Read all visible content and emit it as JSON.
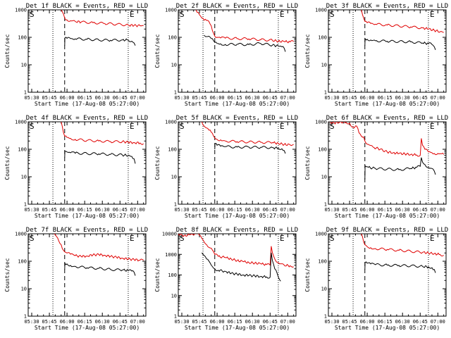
{
  "colors": {
    "events": "#000000",
    "lld": "#e00000",
    "axis": "#000000"
  },
  "x_tick_labels": [
    "05:30",
    "05:45",
    "06:00",
    "06:15",
    "06:30",
    "06:45",
    "07:00"
  ],
  "y_tick_labels": [
    "1",
    "10",
    "100",
    "1000"
  ],
  "y_tick_labels_big": [
    "1",
    "10",
    "100",
    "1000",
    "10000"
  ],
  "xlabel": "Start Time (17-Aug-08 05:27:00)",
  "ylabel": "Counts/sec",
  "start_marker": "S",
  "end_marker": "E",
  "chart_data": [
    {
      "type": "line",
      "title": "Det 1f BLACK = Events, RED = LLD",
      "x_unit": "minutes after 05:27:00",
      "xlim": [
        0,
        100
      ],
      "ylim": [
        1,
        1000
      ],
      "yscale": "log",
      "verticals": {
        "dotted": [
          21,
          85
        ],
        "dashed": [
          31
        ]
      },
      "series": [
        {
          "name": "RED = LLD",
          "color": "#e00000",
          "x": [
            28,
            30,
            31,
            33,
            36,
            40,
            45,
            55,
            65,
            75,
            85,
            90,
            95,
            98
          ],
          "y": [
            1000,
            700,
            500,
            430,
            400,
            380,
            360,
            340,
            320,
            300,
            280,
            270,
            265,
            265
          ]
        },
        {
          "name": "BLACK = Events",
          "color": "#000000",
          "x": [
            31,
            31.2,
            33,
            36,
            40,
            50,
            60,
            70,
            80,
            85,
            88,
            90,
            91
          ],
          "y": [
            50,
            95,
            92,
            90,
            88,
            85,
            80,
            78,
            80,
            80,
            72,
            62,
            50
          ]
        }
      ]
    },
    {
      "type": "line",
      "title": "Det 2f BLACK = Events, RED = LLD",
      "x_unit": "minutes after 05:27:00",
      "xlim": [
        0,
        100
      ],
      "ylim": [
        1,
        1000
      ],
      "yscale": "log",
      "verticals": {
        "dotted": [
          21,
          85
        ],
        "dashed": [
          31
        ]
      },
      "series": [
        {
          "name": "RED = LLD",
          "color": "#e00000",
          "x": [
            15,
            17,
            20,
            22,
            24,
            26,
            28,
            30,
            31,
            33,
            36,
            40,
            50,
            60,
            70,
            80,
            85,
            90,
            95,
            98
          ],
          "y": [
            1000,
            800,
            500,
            420,
            410,
            380,
            260,
            140,
            110,
            100,
            95,
            93,
            90,
            88,
            82,
            78,
            72,
            70,
            68,
            70
          ]
        },
        {
          "name": "BLACK = Events",
          "color": "#000000",
          "x": [
            22,
            26,
            28,
            30,
            31,
            33,
            36,
            40,
            50,
            60,
            70,
            80,
            85,
            88,
            90,
            91
          ],
          "y": [
            120,
            110,
            90,
            75,
            65,
            60,
            58,
            55,
            56,
            54,
            60,
            52,
            48,
            45,
            40,
            30
          ]
        }
      ]
    },
    {
      "type": "line",
      "title": "Det 3f BLACK = Events, RED = LLD",
      "x_unit": "minutes after 05:27:00",
      "xlim": [
        0,
        100
      ],
      "ylim": [
        1,
        1000
      ],
      "yscale": "log",
      "verticals": {
        "dotted": [
          21,
          85
        ],
        "dashed": [
          31
        ]
      },
      "series": [
        {
          "name": "RED = LLD",
          "color": "#e00000",
          "x": [
            28,
            30,
            31,
            33,
            36,
            40,
            50,
            60,
            70,
            80,
            85,
            90,
            95,
            98
          ],
          "y": [
            1000,
            500,
            380,
            340,
            320,
            300,
            280,
            260,
            240,
            220,
            200,
            180,
            160,
            150
          ]
        },
        {
          "name": "BLACK = Events",
          "color": "#000000",
          "x": [
            31,
            31.2,
            33,
            36,
            40,
            50,
            60,
            70,
            80,
            85,
            88,
            90,
            91
          ],
          "y": [
            50,
            90,
            85,
            80,
            75,
            72,
            70,
            68,
            62,
            60,
            55,
            45,
            35
          ]
        }
      ]
    },
    {
      "type": "line",
      "title": "Det 4f BLACK = Events, RED = LLD",
      "x_unit": "minutes after 05:27:00",
      "xlim": [
        0,
        100
      ],
      "ylim": [
        1,
        1000
      ],
      "yscale": "log",
      "verticals": {
        "dotted": [
          21,
          85
        ],
        "dashed": [
          31
        ]
      },
      "series": [
        {
          "name": "RED = LLD",
          "color": "#e00000",
          "x": [
            28,
            30,
            31,
            33,
            36,
            40,
            50,
            60,
            70,
            80,
            85,
            90,
            95,
            98
          ],
          "y": [
            1000,
            400,
            300,
            270,
            250,
            230,
            210,
            200,
            190,
            190,
            180,
            175,
            170,
            160
          ]
        },
        {
          "name": "BLACK = Events",
          "color": "#000000",
          "x": [
            31,
            31.2,
            33,
            36,
            40,
            50,
            60,
            70,
            80,
            85,
            88,
            90,
            91
          ],
          "y": [
            50,
            85,
            80,
            75,
            72,
            70,
            68,
            65,
            62,
            60,
            55,
            45,
            30
          ]
        }
      ]
    },
    {
      "type": "line",
      "title": "Det 5f BLACK = Events, RED = LLD",
      "x_unit": "minutes after 05:27:00",
      "xlim": [
        0,
        100
      ],
      "ylim": [
        1,
        1000
      ],
      "yscale": "log",
      "verticals": {
        "dotted": [
          21,
          85
        ],
        "dashed": [
          31
        ]
      },
      "series": [
        {
          "name": "RED = LLD",
          "color": "#e00000",
          "x": [
            20,
            22,
            24,
            26,
            28,
            30,
            31,
            33,
            36,
            40,
            50,
            60,
            70,
            80,
            85,
            90,
            95,
            98
          ],
          "y": [
            1000,
            700,
            600,
            500,
            420,
            300,
            260,
            230,
            220,
            200,
            190,
            185,
            180,
            175,
            165,
            150,
            145,
            150
          ]
        },
        {
          "name": "BLACK = Events",
          "color": "#000000",
          "x": [
            31,
            31.2,
            33,
            36,
            40,
            50,
            60,
            70,
            80,
            85,
            88,
            90,
            91
          ],
          "y": [
            100,
            160,
            140,
            130,
            125,
            120,
            120,
            118,
            115,
            110,
            105,
            90,
            70
          ]
        }
      ]
    },
    {
      "type": "line",
      "title": "Det 6f BLACK = Events, RED = LLD",
      "x_unit": "minutes after 05:27:00",
      "xlim": [
        0,
        100
      ],
      "ylim": [
        1,
        1000
      ],
      "yscale": "log",
      "verticals": {
        "dotted": [
          21,
          85
        ],
        "dashed": [
          31
        ]
      },
      "series": [
        {
          "name": "RED = LLD",
          "color": "#e00000",
          "x": [
            0,
            5,
            10,
            15,
            18,
            20,
            22,
            24,
            26,
            28,
            30,
            31,
            34,
            38,
            44,
            50,
            55,
            60,
            65,
            70,
            75,
            78,
            79,
            80,
            82,
            85,
            88,
            90,
            93,
            96,
            98
          ],
          "y": [
            1000,
            900,
            1000,
            950,
            900,
            650,
            600,
            700,
            400,
            300,
            280,
            200,
            150,
            120,
            100,
            80,
            75,
            70,
            68,
            65,
            62,
            60,
            250,
            140,
            100,
            80,
            75,
            70,
            70,
            68,
            65
          ]
        },
        {
          "name": "BLACK = Events",
          "color": "#000000",
          "x": [
            31,
            31.2,
            34,
            40,
            50,
            60,
            70,
            75,
            78,
            79,
            80,
            82,
            85,
            88,
            90,
            91
          ],
          "y": [
            8,
            25,
            22,
            20,
            19,
            18,
            20,
            22,
            24,
            50,
            34,
            28,
            22,
            20,
            16,
            12
          ]
        }
      ]
    },
    {
      "type": "line",
      "title": "Det 7f BLACK = Events, RED = LLD",
      "x_unit": "minutes after 05:27:00",
      "xlim": [
        0,
        100
      ],
      "ylim": [
        1,
        1000
      ],
      "yscale": "log",
      "verticals": {
        "dotted": [
          21,
          85
        ],
        "dashed": [
          31
        ]
      },
      "series": [
        {
          "name": "RED = LLD",
          "color": "#e00000",
          "x": [
            22,
            25,
            28,
            30,
            31,
            33,
            36,
            40,
            45,
            50,
            55,
            60,
            65,
            70,
            75,
            80,
            85,
            90,
            95,
            98
          ],
          "y": [
            1000,
            700,
            400,
            250,
            220,
            200,
            180,
            160,
            150,
            155,
            170,
            175,
            165,
            150,
            140,
            130,
            120,
            115,
            110,
            110
          ]
        },
        {
          "name": "BLACK = Events",
          "color": "#000000",
          "x": [
            31,
            31.2,
            33,
            36,
            40,
            50,
            60,
            70,
            80,
            85,
            88,
            90,
            91
          ],
          "y": [
            50,
            85,
            80,
            70,
            65,
            58,
            55,
            50,
            48,
            46,
            44,
            40,
            30
          ]
        }
      ]
    },
    {
      "type": "line",
      "title": "Det 8f BLACK = Events, RED = LLD",
      "x_unit": "minutes after 05:27:00",
      "xlim": [
        0,
        100
      ],
      "ylim": [
        1,
        10000
      ],
      "yscale": "log",
      "verticals": {
        "dotted": [
          21,
          85
        ],
        "dashed": [
          31
        ]
      },
      "series": [
        {
          "name": "RED = LLD",
          "color": "#e00000",
          "x": [
            0,
            5,
            10,
            15,
            18,
            20,
            24,
            28,
            31,
            34,
            40,
            45,
            50,
            55,
            60,
            65,
            70,
            75,
            78,
            79,
            80,
            82,
            85,
            88,
            90,
            95,
            98
          ],
          "y": [
            10000,
            8000,
            9000,
            10000,
            8500,
            6000,
            3000,
            2000,
            1000,
            800,
            700,
            600,
            500,
            450,
            400,
            380,
            350,
            320,
            300,
            2500,
            1200,
            600,
            400,
            350,
            300,
            280,
            250
          ]
        },
        {
          "name": "BLACK = Events",
          "color": "#000000",
          "x": [
            20,
            24,
            28,
            31,
            34,
            40,
            45,
            50,
            55,
            60,
            65,
            70,
            75,
            78,
            79,
            80,
            82,
            84,
            85,
            86,
            87
          ],
          "y": [
            1200,
            600,
            300,
            200,
            170,
            150,
            120,
            110,
            100,
            95,
            90,
            85,
            80,
            78,
            1200,
            500,
            200,
            120,
            80,
            60,
            50
          ]
        }
      ]
    },
    {
      "type": "line",
      "title": "Det 9f BLACK = Events, RED = LLD",
      "x_unit": "minutes after 05:27:00",
      "xlim": [
        0,
        100
      ],
      "ylim": [
        1,
        1000
      ],
      "yscale": "log",
      "verticals": {
        "dotted": [
          21,
          85
        ],
        "dashed": [
          31
        ]
      },
      "series": [
        {
          "name": "RED = LLD",
          "color": "#e00000",
          "x": [
            28,
            30,
            31,
            33,
            36,
            40,
            50,
            60,
            70,
            80,
            85,
            90,
            95,
            98
          ],
          "y": [
            1000,
            500,
            400,
            340,
            310,
            290,
            270,
            250,
            230,
            210,
            200,
            190,
            175,
            165
          ]
        },
        {
          "name": "BLACK = Events",
          "color": "#000000",
          "x": [
            31,
            31.2,
            33,
            36,
            40,
            50,
            60,
            70,
            80,
            85,
            88,
            90,
            91
          ],
          "y": [
            50,
            90,
            85,
            80,
            75,
            72,
            70,
            68,
            65,
            62,
            58,
            50,
            38
          ]
        }
      ]
    }
  ]
}
